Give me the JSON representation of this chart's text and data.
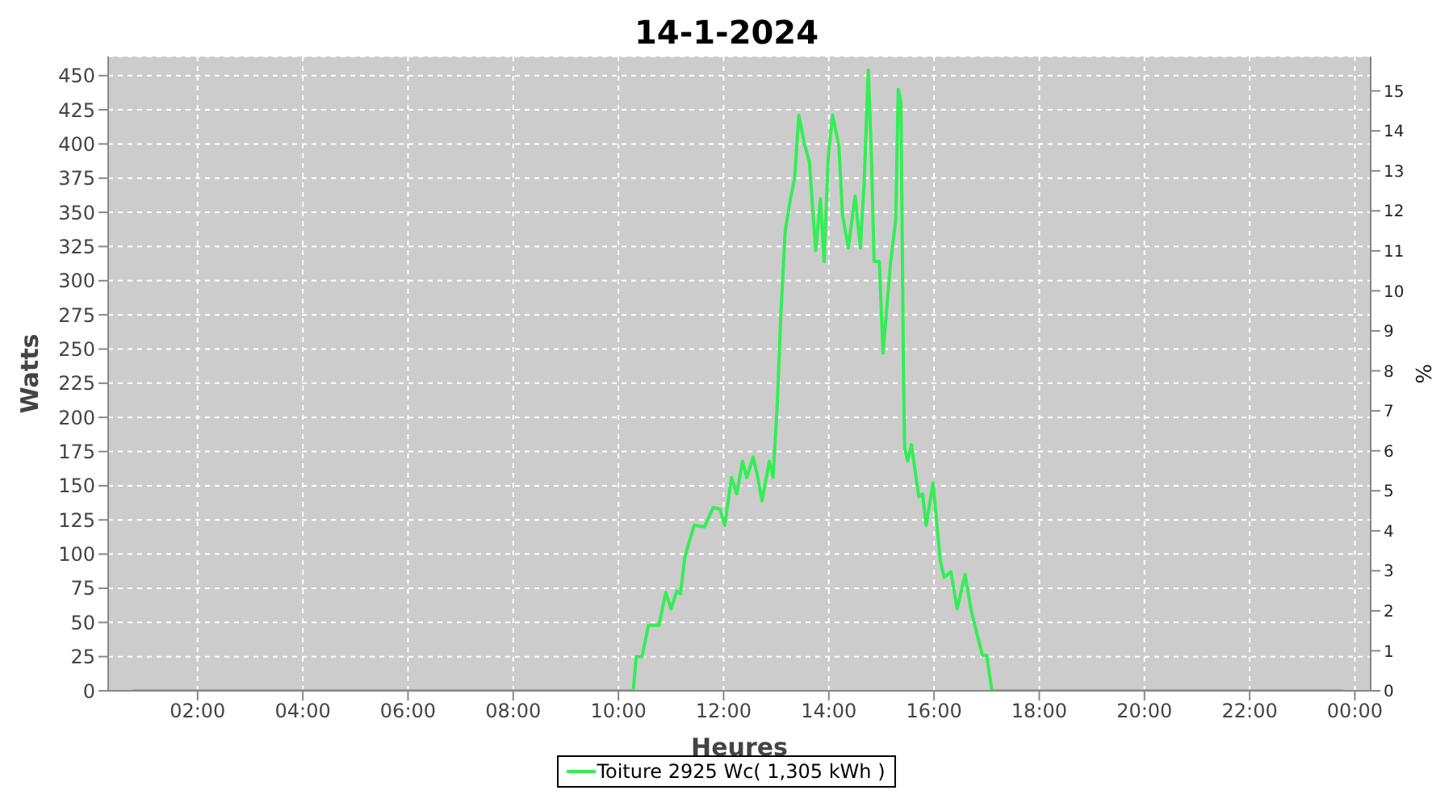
{
  "chart_data": {
    "type": "line",
    "title": "14-1-2024",
    "xlabel": "Heures",
    "ylabel": "Watts",
    "y2label": "%",
    "xlim": [
      0.3,
      24.3
    ],
    "xticks": [
      {
        "value": 2,
        "label": "02:00"
      },
      {
        "value": 4,
        "label": "04:00"
      },
      {
        "value": 6,
        "label": "06:00"
      },
      {
        "value": 8,
        "label": "08:00"
      },
      {
        "value": 10,
        "label": "10:00"
      },
      {
        "value": 12,
        "label": "12:00"
      },
      {
        "value": 14,
        "label": "14:00"
      },
      {
        "value": 16,
        "label": "16:00"
      },
      {
        "value": 18,
        "label": "18:00"
      },
      {
        "value": 20,
        "label": "20:00"
      },
      {
        "value": 22,
        "label": "22:00"
      },
      {
        "value": 24,
        "label": "00:00"
      }
    ],
    "ylim": [
      0,
      464
    ],
    "yticks": [
      0,
      25,
      50,
      75,
      100,
      125,
      150,
      175,
      200,
      225,
      250,
      275,
      300,
      325,
      350,
      375,
      400,
      425,
      450
    ],
    "y2lim": [
      0,
      15.86
    ],
    "y2ticks": [
      0,
      1,
      2,
      3,
      4,
      5,
      6,
      7,
      8,
      9,
      10,
      11,
      12,
      13,
      14,
      15
    ],
    "grid": true,
    "legend": "bottom",
    "series": [
      {
        "name": "Toiture 2925 Wc( 1,305 kWh )",
        "color": "#33ee55",
        "x": [
          0.77,
          10.28,
          10.34,
          10.45,
          10.57,
          10.77,
          10.9,
          11.0,
          11.11,
          11.18,
          11.26,
          11.33,
          11.44,
          11.64,
          11.8,
          11.93,
          12.02,
          12.15,
          12.25,
          12.36,
          12.44,
          12.56,
          12.64,
          12.73,
          12.87,
          12.94,
          13.02,
          13.09,
          13.17,
          13.27,
          13.35,
          13.43,
          13.53,
          13.63,
          13.68,
          13.75,
          13.84,
          13.91,
          13.99,
          14.07,
          14.19,
          14.26,
          14.37,
          14.5,
          14.6,
          14.67,
          14.75,
          14.81,
          14.86,
          14.96,
          15.03,
          15.17,
          15.27,
          15.32,
          15.37,
          15.42,
          15.44,
          15.5,
          15.57,
          15.71,
          15.78,
          15.85,
          15.98,
          16.12,
          16.19,
          16.32,
          16.44,
          16.59,
          16.7,
          16.8,
          16.92,
          17.0,
          17.1,
          23.78
        ],
        "values": [
          0,
          0,
          25,
          25,
          48,
          48,
          72,
          60,
          73,
          71,
          97,
          107,
          121,
          120,
          134,
          133,
          121,
          156,
          144,
          168,
          156,
          171,
          158,
          139,
          168,
          156,
          210,
          277,
          336,
          360,
          375,
          421,
          401,
          387,
          360,
          322,
          360,
          314,
          391,
          421,
          399,
          348,
          324,
          362,
          324,
          371,
          454,
          391,
          314,
          314,
          247,
          312,
          344,
          440,
          431,
          230,
          178,
          168,
          180,
          142,
          144,
          121,
          152,
          95,
          83,
          87,
          60,
          85,
          60,
          44,
          26,
          26,
          0,
          0
        ]
      }
    ]
  }
}
